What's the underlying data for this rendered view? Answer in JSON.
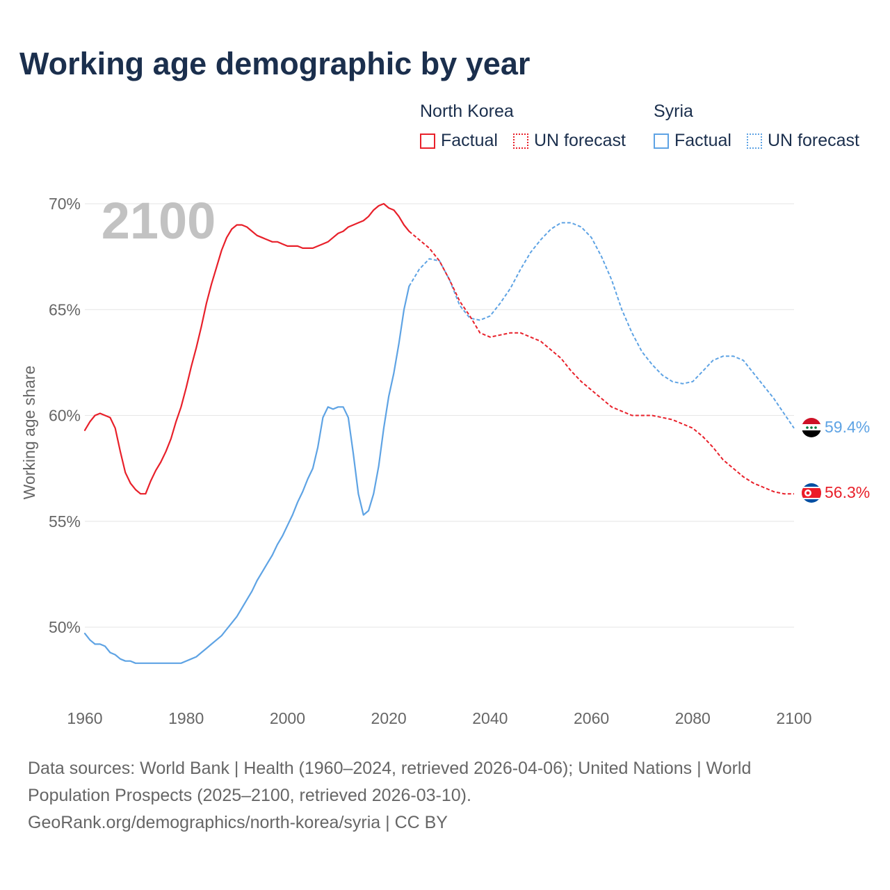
{
  "title": "Working age demographic by year",
  "legend": {
    "groups": [
      {
        "name": "North Korea",
        "factual": "Factual",
        "forecast": "UN forecast"
      },
      {
        "name": "Syria",
        "factual": "Factual",
        "forecast": "UN forecast"
      }
    ]
  },
  "colors": {
    "north_korea": "#e8202a",
    "syria": "#5ea3e4",
    "year_watermark": "#c2c2c2",
    "grid": "#e6e6e6",
    "axis_text": "#666666",
    "title": "#1b2f4d"
  },
  "footer": {
    "line1": "Data sources: World Bank | Health (1960–2024, retrieved 2026-04-06); United Nations | World",
    "line2": "Population Prospects (2025–2100, retrieved 2026-03-10).",
    "line3": "GeoRank.org/demographics/north-korea/syria | CC BY"
  },
  "chart_data": {
    "type": "line",
    "year_label": "2100",
    "ylabel": "Working age share",
    "xlim": [
      1960,
      2100
    ],
    "ylim": [
      47,
      71
    ],
    "x_ticks": [
      1960,
      1980,
      2000,
      2020,
      2040,
      2060,
      2080,
      2100
    ],
    "y_ticks": [
      {
        "value": 50,
        "label": "50%"
      },
      {
        "value": 55,
        "label": "55%"
      },
      {
        "value": 60,
        "label": "60%"
      },
      {
        "value": 65,
        "label": "65%"
      },
      {
        "value": 70,
        "label": "70%"
      }
    ],
    "series": [
      {
        "name": "North Korea",
        "color": "#e8202a",
        "end_label": "56.3%",
        "end_icon": "north-korea-flag-icon",
        "factual": {
          "x": [
            1960,
            1961,
            1962,
            1963,
            1964,
            1965,
            1966,
            1967,
            1968,
            1969,
            1970,
            1971,
            1972,
            1973,
            1974,
            1975,
            1976,
            1977,
            1978,
            1979,
            1980,
            1981,
            1982,
            1983,
            1984,
            1985,
            1986,
            1987,
            1988,
            1989,
            1990,
            1991,
            1992,
            1993,
            1994,
            1995,
            1996,
            1997,
            1998,
            1999,
            2000,
            2001,
            2002,
            2003,
            2004,
            2005,
            2006,
            2007,
            2008,
            2009,
            2010,
            2011,
            2012,
            2013,
            2014,
            2015,
            2016,
            2017,
            2018,
            2019,
            2020,
            2021,
            2022,
            2023,
            2024
          ],
          "y": [
            59.3,
            59.7,
            60.0,
            60.1,
            60.0,
            59.9,
            59.4,
            58.3,
            57.3,
            56.8,
            56.5,
            56.3,
            56.3,
            56.9,
            57.4,
            57.8,
            58.3,
            58.9,
            59.7,
            60.4,
            61.3,
            62.3,
            63.2,
            64.2,
            65.3,
            66.2,
            67.0,
            67.8,
            68.4,
            68.8,
            69.0,
            69.0,
            68.9,
            68.7,
            68.5,
            68.4,
            68.3,
            68.2,
            68.2,
            68.1,
            68.0,
            68.0,
            68.0,
            67.9,
            67.9,
            67.9,
            68.0,
            68.1,
            68.2,
            68.4,
            68.6,
            68.7,
            68.9,
            69.0,
            69.1,
            69.2,
            69.4,
            69.7,
            69.9,
            70.0,
            69.8,
            69.7,
            69.4,
            69.0,
            68.7
          ]
        },
        "forecast": {
          "x": [
            2024,
            2026,
            2028,
            2030,
            2032,
            2034,
            2036,
            2038,
            2040,
            2042,
            2044,
            2046,
            2048,
            2050,
            2052,
            2054,
            2056,
            2058,
            2060,
            2062,
            2064,
            2066,
            2068,
            2070,
            2072,
            2074,
            2076,
            2078,
            2080,
            2082,
            2084,
            2086,
            2088,
            2090,
            2092,
            2094,
            2096,
            2098,
            2100
          ],
          "y": [
            68.7,
            68.3,
            67.9,
            67.3,
            66.4,
            65.4,
            64.7,
            63.9,
            63.7,
            63.8,
            63.9,
            63.9,
            63.7,
            63.5,
            63.1,
            62.7,
            62.1,
            61.6,
            61.2,
            60.8,
            60.4,
            60.2,
            60.0,
            60.0,
            60.0,
            59.9,
            59.8,
            59.6,
            59.4,
            59.0,
            58.5,
            57.9,
            57.5,
            57.1,
            56.8,
            56.6,
            56.4,
            56.3,
            56.3
          ]
        }
      },
      {
        "name": "Syria",
        "color": "#5ea3e4",
        "end_label": "59.4%",
        "end_icon": "syria-flag-icon",
        "factual": {
          "x": [
            1960,
            1961,
            1962,
            1963,
            1964,
            1965,
            1966,
            1967,
            1968,
            1969,
            1970,
            1971,
            1972,
            1973,
            1974,
            1975,
            1976,
            1977,
            1978,
            1979,
            1980,
            1981,
            1982,
            1983,
            1984,
            1985,
            1986,
            1987,
            1988,
            1989,
            1990,
            1991,
            1992,
            1993,
            1994,
            1995,
            1996,
            1997,
            1998,
            1999,
            2000,
            2001,
            2002,
            2003,
            2004,
            2005,
            2006,
            2007,
            2008,
            2009,
            2010,
            2011,
            2012,
            2013,
            2014,
            2015,
            2016,
            2017,
            2018,
            2019,
            2020,
            2021,
            2022,
            2023,
            2024
          ],
          "y": [
            49.7,
            49.4,
            49.2,
            49.2,
            49.1,
            48.8,
            48.7,
            48.5,
            48.4,
            48.4,
            48.3,
            48.3,
            48.3,
            48.3,
            48.3,
            48.3,
            48.3,
            48.3,
            48.3,
            48.3,
            48.4,
            48.5,
            48.6,
            48.8,
            49.0,
            49.2,
            49.4,
            49.6,
            49.9,
            50.2,
            50.5,
            50.9,
            51.3,
            51.7,
            52.2,
            52.6,
            53.0,
            53.4,
            53.9,
            54.3,
            54.8,
            55.3,
            55.9,
            56.4,
            57.0,
            57.5,
            58.5,
            59.9,
            60.4,
            60.3,
            60.4,
            60.4,
            59.9,
            58.2,
            56.3,
            55.3,
            55.5,
            56.3,
            57.6,
            59.4,
            60.9,
            62.0,
            63.4,
            65.0,
            66.1
          ]
        },
        "forecast": {
          "x": [
            2024,
            2026,
            2028,
            2030,
            2032,
            2034,
            2036,
            2038,
            2040,
            2042,
            2044,
            2046,
            2048,
            2050,
            2052,
            2054,
            2056,
            2058,
            2060,
            2062,
            2064,
            2066,
            2068,
            2070,
            2072,
            2074,
            2076,
            2078,
            2080,
            2082,
            2084,
            2086,
            2088,
            2090,
            2092,
            2094,
            2096,
            2098,
            2100
          ],
          "y": [
            66.1,
            66.9,
            67.4,
            67.3,
            66.4,
            65.2,
            64.6,
            64.5,
            64.7,
            65.3,
            66.0,
            66.9,
            67.7,
            68.3,
            68.8,
            69.1,
            69.1,
            68.9,
            68.4,
            67.5,
            66.4,
            65.0,
            63.9,
            63.0,
            62.4,
            61.9,
            61.6,
            61.5,
            61.6,
            62.1,
            62.6,
            62.8,
            62.8,
            62.6,
            62.0,
            61.4,
            60.8,
            60.1,
            59.4
          ]
        }
      }
    ]
  }
}
